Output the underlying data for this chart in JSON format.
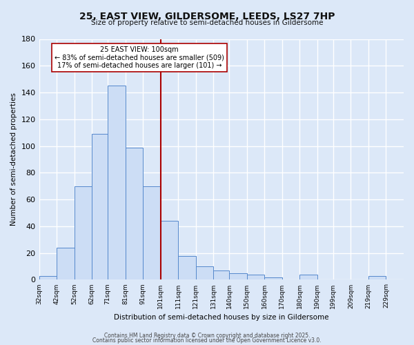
{
  "title": "25, EAST VIEW, GILDERSOME, LEEDS, LS27 7HP",
  "subtitle": "Size of property relative to semi-detached houses in Gildersome",
  "xlabel": "Distribution of semi-detached houses by size in Gildersome",
  "ylabel": "Number of semi-detached properties",
  "bar_color": "#ccddf5",
  "bar_edge_color": "#5588cc",
  "background_color": "#dce8f8",
  "grid_color": "#ffffff",
  "vline_color": "#aa0000",
  "annotation_line1": "25 EAST VIEW: 100sqm",
  "annotation_line2": "← 83% of semi-detached houses are smaller (509)",
  "annotation_line3": "17% of semi-detached houses are larger (101) →",
  "annotation_box_color": "#ffffff",
  "annotation_box_edge": "#aa0000",
  "footer1": "Contains HM Land Registry data © Crown copyright and database right 2025.",
  "footer2": "Contains public sector information licensed under the Open Government Licence v3.0.",
  "categories": [
    "32sqm",
    "42sqm",
    "52sqm",
    "62sqm",
    "71sqm",
    "81sqm",
    "91sqm",
    "101sqm",
    "111sqm",
    "121sqm",
    "131sqm",
    "140sqm",
    "150sqm",
    "160sqm",
    "170sqm",
    "180sqm",
    "190sqm",
    "199sqm",
    "209sqm",
    "219sqm",
    "229sqm"
  ],
  "values": [
    3,
    24,
    70,
    109,
    145,
    99,
    70,
    44,
    18,
    10,
    7,
    5,
    4,
    2,
    0,
    4,
    0,
    0,
    0,
    3,
    0
  ],
  "bin_left": [
    27,
    37,
    47,
    57,
    66,
    76,
    86,
    96,
    106,
    116,
    126,
    135,
    145,
    155,
    165,
    175,
    185,
    194,
    204,
    214,
    224
  ],
  "bin_right": [
    37,
    47,
    57,
    66,
    76,
    86,
    96,
    106,
    116,
    126,
    135,
    145,
    155,
    165,
    175,
    185,
    194,
    204,
    214,
    224,
    234
  ],
  "vline_x": 96,
  "xlim_left": 27,
  "xlim_right": 234,
  "ylim": [
    0,
    180
  ],
  "yticks": [
    0,
    20,
    40,
    60,
    80,
    100,
    120,
    140,
    160,
    180
  ]
}
